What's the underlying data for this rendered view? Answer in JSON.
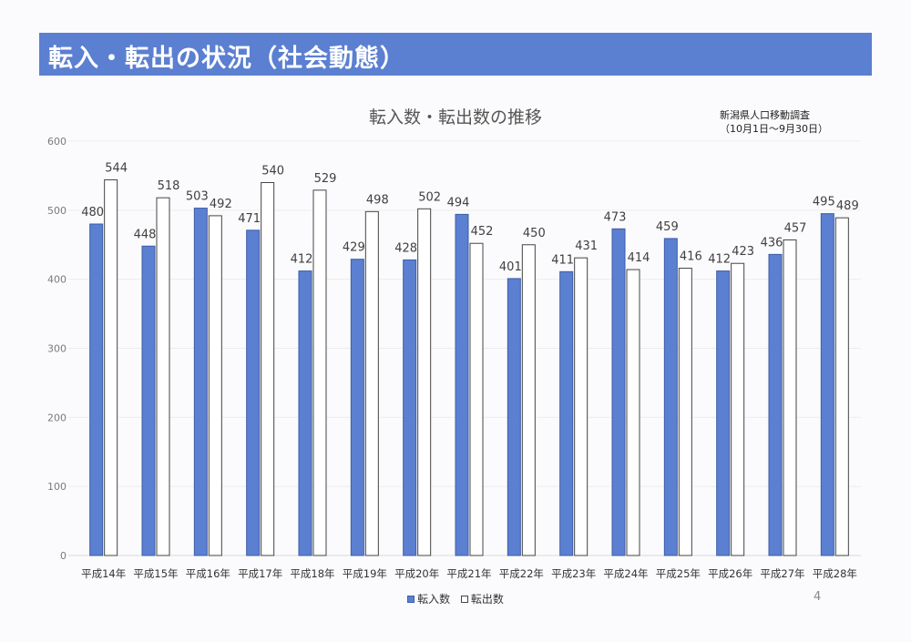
{
  "header": {
    "banner_title": "転入・転出の状況（社会動態）"
  },
  "source_note": {
    "line1": "新潟県人口移動調査",
    "line2": "（10月1日～9月30日）"
  },
  "page_number": "4",
  "colors": {
    "banner": "#5b7fd1",
    "series_in": "#5b7fd1",
    "series_out": "#ffffff"
  },
  "chart_data": {
    "type": "bar",
    "title": "転入数・転出数の推移",
    "xlabel": "",
    "ylabel": "",
    "ylim": [
      0,
      600
    ],
    "yticks": [
      0,
      100,
      200,
      300,
      400,
      500,
      600
    ],
    "grid": true,
    "legend_position": "bottom",
    "categories": [
      "平成14年",
      "平成15年",
      "平成16年",
      "平成17年",
      "平成18年",
      "平成19年",
      "平成20年",
      "平成21年",
      "平成22年",
      "平成23年",
      "平成24年",
      "平成25年",
      "平成26年",
      "平成27年",
      "平成28年"
    ],
    "series": [
      {
        "name": "転入数",
        "values": [
          480,
          448,
          503,
          471,
          412,
          429,
          428,
          494,
          401,
          411,
          473,
          459,
          412,
          436,
          495
        ]
      },
      {
        "name": "転出数",
        "values": [
          544,
          518,
          492,
          540,
          529,
          498,
          502,
          452,
          450,
          431,
          414,
          416,
          423,
          457,
          489
        ]
      }
    ]
  }
}
